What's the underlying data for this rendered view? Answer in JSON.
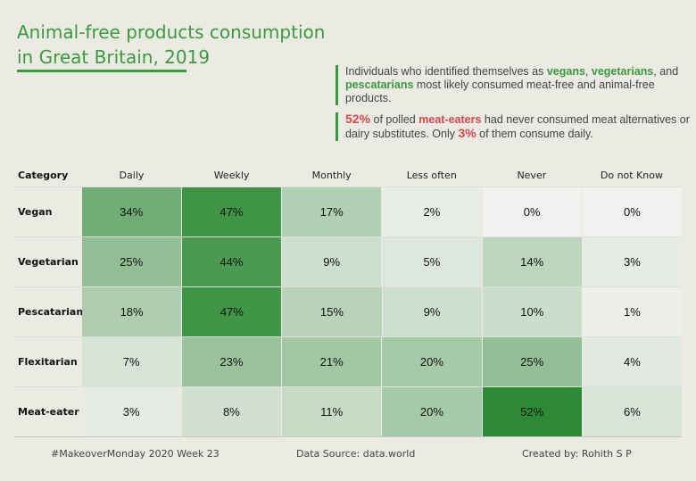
{
  "title": {
    "line1": "Animal-free products consumption",
    "line2": "in Great Britain, 2019"
  },
  "note1": {
    "t1": "Individuals who identified themselves as ",
    "vegans": "vegans",
    "comma1": ", ",
    "vegetarians": "vegetarians",
    "t2": ", and ",
    "pescatarians": "pescatarians",
    "t3": " most likely consumed meat-free and animal-free products."
  },
  "note2": {
    "pct52": "52%",
    "t1": " of polled ",
    "meat_eaters": "meat-eaters",
    "t2": " had never consumed meat alternatives or dairy substitutes. Only ",
    "pct3": "3%",
    "t3": " of them consume daily."
  },
  "chart_data": {
    "type": "heatmap",
    "title": "Animal-free products consumption in Great Britain, 2019",
    "row_header": "Category",
    "columns": [
      "Daily",
      "Weekly",
      "Monthly",
      "Less often",
      "Never",
      "Do not Know"
    ],
    "rows": [
      "Vegan",
      "Vegetarian",
      "Pescatarian",
      "Flexitarian",
      "Meat-eater"
    ],
    "values": [
      [
        34,
        47,
        17,
        2,
        0,
        0
      ],
      [
        25,
        44,
        9,
        5,
        14,
        3
      ],
      [
        18,
        47,
        15,
        9,
        10,
        1
      ],
      [
        7,
        23,
        21,
        20,
        25,
        4
      ],
      [
        3,
        8,
        11,
        20,
        52,
        6
      ]
    ],
    "unit": "%",
    "color_scale": {
      "low": "#f1f1ef",
      "high": "#2d8a34",
      "max": 52
    }
  },
  "footer": {
    "left": "#MakeoverMonday 2020 Week 23",
    "center": "Data Source: data.world",
    "right": "Created by: Rohith S P"
  }
}
